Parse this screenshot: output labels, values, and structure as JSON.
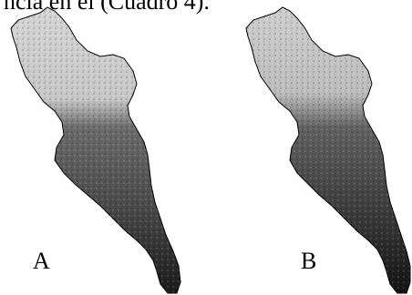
{
  "caption": {
    "text": "ncia en el (Cuadro 4)."
  },
  "panels": [
    {
      "label": "A"
    },
    {
      "label": "B"
    }
  ],
  "colors": {
    "light_region": "#d8d8d8",
    "dark_region": "#3a3a3a",
    "outline": "#000000"
  }
}
